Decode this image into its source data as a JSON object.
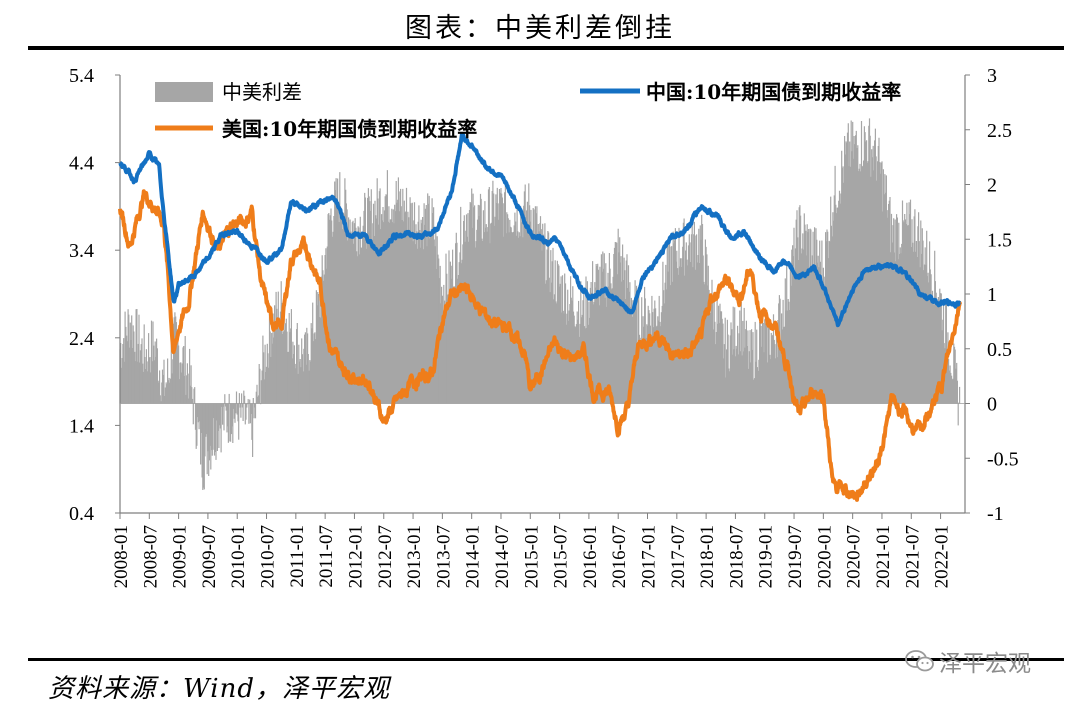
{
  "figure_title": "图表：中美利差倒挂",
  "source": "资料来源：Wind，泽平宏观",
  "brand": {
    "text": "泽平宏观",
    "icon": "wechat-icon"
  },
  "colors": {
    "spread": "#a6a6a6",
    "china": "#1470c3",
    "us": "#ef7d1a"
  },
  "chart_data": {
    "type": "line",
    "x_tick_labels": [
      "2008-01",
      "2008-07",
      "2009-01",
      "2009-07",
      "2010-01",
      "2010-07",
      "2011-01",
      "2011-07",
      "2012-01",
      "2012-07",
      "2013-01",
      "2013-07",
      "2014-01",
      "2014-07",
      "2015-01",
      "2015-07",
      "2016-01",
      "2016-07",
      "2017-01",
      "2017-07",
      "2018-01",
      "2018-07",
      "2019-01",
      "2019-07",
      "2020-01",
      "2020-07",
      "2021-01",
      "2021-07",
      "2022-01"
    ],
    "y_left": {
      "ticks": [
        "0.4",
        "1.4",
        "2.4",
        "3.4",
        "4.4",
        "5.4"
      ],
      "range": [
        0.4,
        5.4
      ]
    },
    "y_right": {
      "ticks": [
        "-1",
        "-0.5",
        "0",
        "0.5",
        "1",
        "1.5",
        "2",
        "2.5",
        "3"
      ],
      "range": [
        -1,
        3
      ]
    },
    "legend": {
      "spread": "中美利差",
      "china": "中国:10年期国债到期收益率",
      "us": "美国:10年期国债到期收益率"
    },
    "series": [
      {
        "key": "china",
        "name": "中国:10年期国债到期收益率",
        "axis": "left",
        "points": [
          [
            "2008-01",
            4.4
          ],
          [
            "2008-04",
            4.2
          ],
          [
            "2008-07",
            4.5
          ],
          [
            "2008-09",
            4.35
          ],
          [
            "2008-10",
            3.8
          ],
          [
            "2008-11",
            3.3
          ],
          [
            "2008-12",
            2.8
          ],
          [
            "2009-01",
            3.0
          ],
          [
            "2009-04",
            3.1
          ],
          [
            "2009-07",
            3.3
          ],
          [
            "2009-10",
            3.6
          ],
          [
            "2010-01",
            3.6
          ],
          [
            "2010-04",
            3.45
          ],
          [
            "2010-07",
            3.3
          ],
          [
            "2010-10",
            3.4
          ],
          [
            "2010-12",
            3.95
          ],
          [
            "2011-03",
            3.85
          ],
          [
            "2011-06",
            3.95
          ],
          [
            "2011-09",
            4.0
          ],
          [
            "2011-12",
            3.55
          ],
          [
            "2012-03",
            3.6
          ],
          [
            "2012-06",
            3.35
          ],
          [
            "2012-09",
            3.55
          ],
          [
            "2012-12",
            3.6
          ],
          [
            "2013-03",
            3.55
          ],
          [
            "2013-06",
            3.65
          ],
          [
            "2013-09",
            4.1
          ],
          [
            "2013-11",
            4.7
          ],
          [
            "2014-01",
            4.6
          ],
          [
            "2014-04",
            4.35
          ],
          [
            "2014-07",
            4.25
          ],
          [
            "2014-10",
            3.95
          ],
          [
            "2015-01",
            3.6
          ],
          [
            "2015-04",
            3.5
          ],
          [
            "2015-07",
            3.5
          ],
          [
            "2015-10",
            3.1
          ],
          [
            "2016-01",
            2.85
          ],
          [
            "2016-04",
            2.95
          ],
          [
            "2016-07",
            2.8
          ],
          [
            "2016-10",
            2.7
          ],
          [
            "2016-12",
            3.1
          ],
          [
            "2017-03",
            3.3
          ],
          [
            "2017-06",
            3.55
          ],
          [
            "2017-09",
            3.65
          ],
          [
            "2017-12",
            3.9
          ],
          [
            "2018-03",
            3.8
          ],
          [
            "2018-06",
            3.55
          ],
          [
            "2018-09",
            3.6
          ],
          [
            "2018-12",
            3.3
          ],
          [
            "2019-03",
            3.15
          ],
          [
            "2019-05",
            3.3
          ],
          [
            "2019-08",
            3.1
          ],
          [
            "2019-11",
            3.2
          ],
          [
            "2020-01",
            3.0
          ],
          [
            "2020-04",
            2.55
          ],
          [
            "2020-07",
            2.95
          ],
          [
            "2020-10",
            3.2
          ],
          [
            "2020-12",
            3.2
          ],
          [
            "2021-03",
            3.25
          ],
          [
            "2021-06",
            3.1
          ],
          [
            "2021-09",
            2.9
          ],
          [
            "2021-12",
            2.8
          ],
          [
            "2022-03",
            2.8
          ],
          [
            "2022-05",
            2.8
          ]
        ]
      },
      {
        "key": "us",
        "name": "美国:10年期国债到期收益率",
        "axis": "left",
        "points": [
          [
            "2008-01",
            3.9
          ],
          [
            "2008-03",
            3.45
          ],
          [
            "2008-06",
            4.05
          ],
          [
            "2008-08",
            3.9
          ],
          [
            "2008-10",
            3.7
          ],
          [
            "2008-11",
            3.0
          ],
          [
            "2008-12",
            2.2
          ],
          [
            "2009-01",
            2.5
          ],
          [
            "2009-03",
            2.8
          ],
          [
            "2009-06",
            3.85
          ],
          [
            "2009-09",
            3.4
          ],
          [
            "2009-12",
            3.7
          ],
          [
            "2010-03",
            3.75
          ],
          [
            "2010-04",
            3.85
          ],
          [
            "2010-06",
            3.0
          ],
          [
            "2010-08",
            2.6
          ],
          [
            "2010-10",
            2.5
          ],
          [
            "2010-12",
            3.3
          ],
          [
            "2011-03",
            3.45
          ],
          [
            "2011-06",
            3.0
          ],
          [
            "2011-08",
            2.3
          ],
          [
            "2011-10",
            2.1
          ],
          [
            "2012-01",
            1.95
          ],
          [
            "2012-04",
            1.9
          ],
          [
            "2012-07",
            1.45
          ],
          [
            "2012-10",
            1.7
          ],
          [
            "2013-01",
            1.9
          ],
          [
            "2013-05",
            2.0
          ],
          [
            "2013-07",
            2.6
          ],
          [
            "2013-09",
            2.9
          ],
          [
            "2013-12",
            2.95
          ],
          [
            "2014-03",
            2.7
          ],
          [
            "2014-06",
            2.55
          ],
          [
            "2014-09",
            2.5
          ],
          [
            "2014-12",
            2.2
          ],
          [
            "2015-01",
            1.8
          ],
          [
            "2015-03",
            2.0
          ],
          [
            "2015-06",
            2.35
          ],
          [
            "2015-09",
            2.15
          ],
          [
            "2015-12",
            2.25
          ],
          [
            "2016-02",
            1.75
          ],
          [
            "2016-05",
            1.8
          ],
          [
            "2016-07",
            1.4
          ],
          [
            "2016-09",
            1.6
          ],
          [
            "2016-11",
            2.3
          ],
          [
            "2017-03",
            2.45
          ],
          [
            "2017-06",
            2.2
          ],
          [
            "2017-09",
            2.2
          ],
          [
            "2017-12",
            2.4
          ],
          [
            "2018-02",
            2.85
          ],
          [
            "2018-05",
            3.05
          ],
          [
            "2018-08",
            2.85
          ],
          [
            "2018-10",
            3.2
          ],
          [
            "2018-12",
            2.7
          ],
          [
            "2019-03",
            2.55
          ],
          [
            "2019-06",
            2.0
          ],
          [
            "2019-08",
            1.5
          ],
          [
            "2019-11",
            1.8
          ],
          [
            "2020-01",
            1.75
          ],
          [
            "2020-03",
            0.7
          ],
          [
            "2020-06",
            0.65
          ],
          [
            "2020-08",
            0.6
          ],
          [
            "2020-10",
            0.8
          ],
          [
            "2020-12",
            0.95
          ],
          [
            "2021-02",
            1.4
          ],
          [
            "2021-03",
            1.7
          ],
          [
            "2021-06",
            1.5
          ],
          [
            "2021-08",
            1.3
          ],
          [
            "2021-11",
            1.55
          ],
          [
            "2022-01",
            1.85
          ],
          [
            "2022-03",
            2.3
          ],
          [
            "2022-05",
            2.85
          ]
        ]
      },
      {
        "key": "spread",
        "name": "中美利差",
        "axis": "right",
        "kind": "area",
        "points": [
          [
            "2008-01",
            0.5
          ],
          [
            "2008-03",
            0.75
          ],
          [
            "2008-06",
            0.45
          ],
          [
            "2008-08",
            0.55
          ],
          [
            "2008-10",
            0.15
          ],
          [
            "2008-11",
            0.25
          ],
          [
            "2008-12",
            0.6
          ],
          [
            "2009-01",
            0.5
          ],
          [
            "2009-03",
            0.3
          ],
          [
            "2009-06",
            -0.55
          ],
          [
            "2009-09",
            -0.2
          ],
          [
            "2009-12",
            -0.1
          ],
          [
            "2010-03",
            -0.15
          ],
          [
            "2010-04",
            -0.3
          ],
          [
            "2010-06",
            0.3
          ],
          [
            "2010-08",
            0.7
          ],
          [
            "2010-10",
            0.9
          ],
          [
            "2010-12",
            0.65
          ],
          [
            "2011-03",
            0.4
          ],
          [
            "2011-06",
            0.95
          ],
          [
            "2011-08",
            1.7
          ],
          [
            "2011-10",
            1.9
          ],
          [
            "2012-01",
            1.6
          ],
          [
            "2012-04",
            1.7
          ],
          [
            "2012-07",
            1.9
          ],
          [
            "2012-10",
            1.85
          ],
          [
            "2013-01",
            1.7
          ],
          [
            "2013-05",
            1.65
          ],
          [
            "2013-07",
            1.05
          ],
          [
            "2013-09",
            1.2
          ],
          [
            "2013-12",
            1.75
          ],
          [
            "2014-03",
            1.65
          ],
          [
            "2014-06",
            1.8
          ],
          [
            "2014-09",
            1.75
          ],
          [
            "2014-12",
            1.75
          ],
          [
            "2015-01",
            1.8
          ],
          [
            "2015-03",
            1.5
          ],
          [
            "2015-06",
            1.15
          ],
          [
            "2015-09",
            0.95
          ],
          [
            "2015-12",
            0.85
          ],
          [
            "2016-02",
            1.1
          ],
          [
            "2016-05",
            1.15
          ],
          [
            "2016-07",
            1.4
          ],
          [
            "2016-09",
            1.1
          ],
          [
            "2016-11",
            0.8
          ],
          [
            "2017-03",
            0.85
          ],
          [
            "2017-06",
            1.35
          ],
          [
            "2017-09",
            1.45
          ],
          [
            "2017-12",
            1.5
          ],
          [
            "2018-02",
            0.95
          ],
          [
            "2018-05",
            0.5
          ],
          [
            "2018-08",
            0.75
          ],
          [
            "2018-10",
            0.4
          ],
          [
            "2018-12",
            0.6
          ],
          [
            "2019-03",
            0.6
          ],
          [
            "2019-06",
            1.1
          ],
          [
            "2019-08",
            1.6
          ],
          [
            "2019-11",
            1.4
          ],
          [
            "2020-01",
            1.25
          ],
          [
            "2020-03",
            1.85
          ],
          [
            "2020-06",
            2.3
          ],
          [
            "2020-08",
            2.35
          ],
          [
            "2020-10",
            2.4
          ],
          [
            "2020-12",
            2.25
          ],
          [
            "2021-02",
            1.85
          ],
          [
            "2021-03",
            1.55
          ],
          [
            "2021-06",
            1.6
          ],
          [
            "2021-08",
            1.6
          ],
          [
            "2021-11",
            1.25
          ],
          [
            "2022-01",
            0.95
          ],
          [
            "2022-03",
            0.5
          ],
          [
            "2022-05",
            -0.05
          ]
        ]
      }
    ]
  }
}
